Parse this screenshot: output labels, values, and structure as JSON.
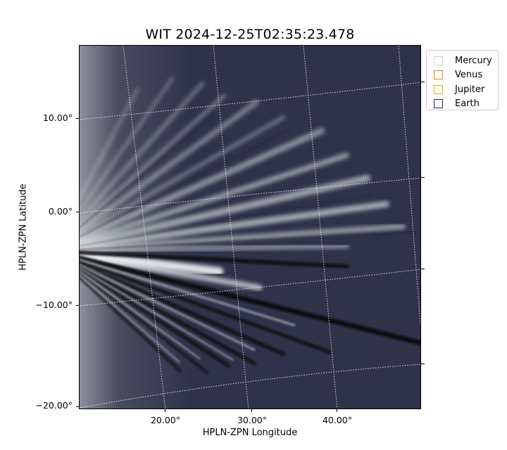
{
  "title": "WIT 2024-12-25T02:35:23.478",
  "axes": {
    "xlabel": "HPLN-ZPN Longitude",
    "ylabel": "HPLN-ZPN Latitude",
    "x_ticks": [
      "20.00°",
      "30.00°",
      "40.00°"
    ],
    "y_ticks": [
      "10.00°",
      "0.00°",
      "−10.00°",
      "−20.00°"
    ]
  },
  "legend": {
    "items": [
      {
        "label": "Mercury",
        "color": "#d0d0d0"
      },
      {
        "label": "Venus",
        "color": "#d9822b"
      },
      {
        "label": "Jupiter",
        "color": "#e0a800"
      },
      {
        "label": "Earth",
        "color": "#1c1c80"
      }
    ]
  },
  "colors": {
    "background": "#2f3147",
    "grid": "#ffffff",
    "bright_streak": "#e6ecec",
    "dark_streak": "#0a0a10"
  }
}
